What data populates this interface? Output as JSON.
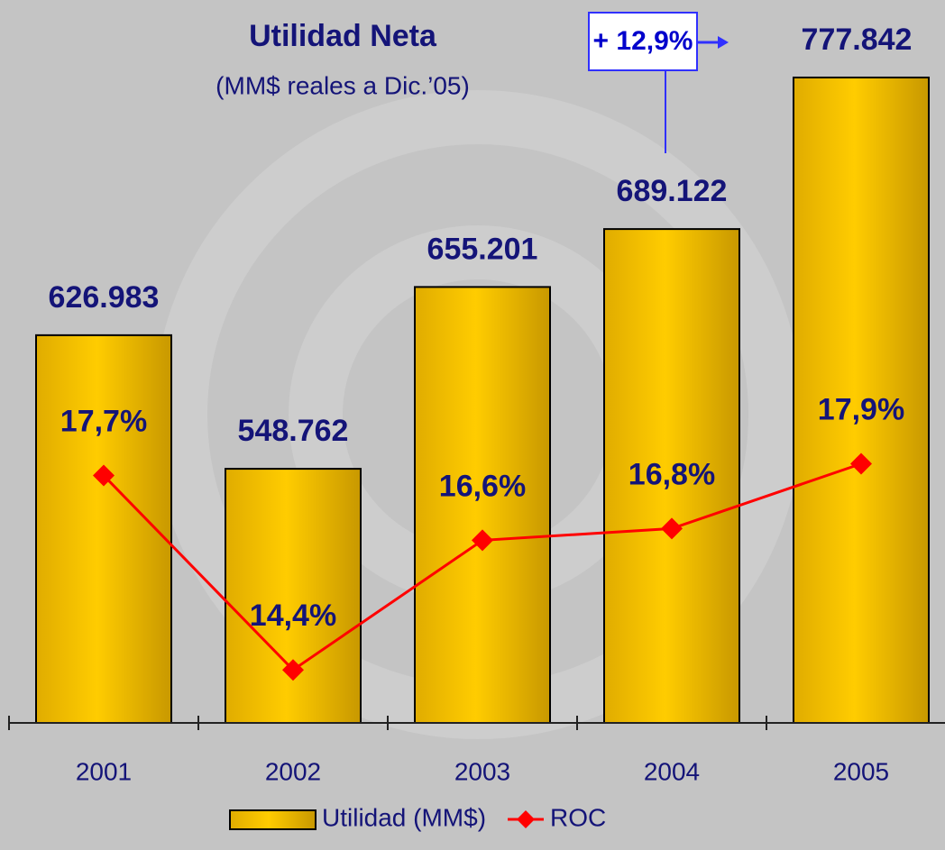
{
  "chart_data": {
    "type": "bar",
    "title": "Utilidad Neta",
    "subtitle": "(MM$ reales a Dic.’05)",
    "annotation": "+ 12,9%",
    "categories": [
      "2001",
      "2002",
      "2003",
      "2004",
      "2005"
    ],
    "series": [
      {
        "name": "Utilidad (MM$)",
        "type": "bar",
        "color": "#ffcc00",
        "values": [
          626983,
          548762,
          655201,
          689122,
          777842
        ],
        "value_labels": [
          "626.983",
          "548.762",
          "655.201",
          "689.122",
          "777.842"
        ]
      },
      {
        "name": "ROC",
        "type": "line",
        "axis": "y2",
        "color": "#ff0000",
        "values": [
          17.7,
          14.4,
          16.6,
          16.8,
          17.9
        ],
        "value_labels": [
          "17,7%",
          "14,4%",
          "16,6%",
          "16,8%",
          "17,9%"
        ]
      }
    ],
    "ylim": [
      400000,
      800000
    ],
    "y2lim": [
      13.5,
      25.1
    ]
  }
}
